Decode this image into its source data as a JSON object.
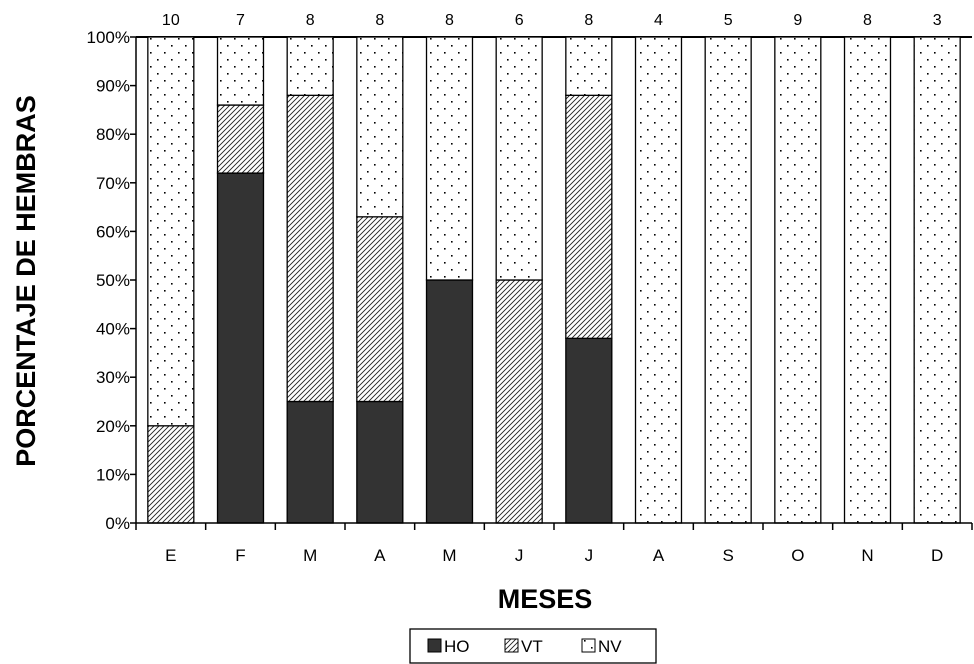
{
  "chart_data": {
    "type": "bar",
    "stacked": "percent",
    "title": "",
    "xlabel": "MESES",
    "ylabel": "PORCENTAJE DE HEMBRAS",
    "categories": [
      "E",
      "F",
      "M",
      "A",
      "M",
      "J",
      "J",
      "A",
      "S",
      "O",
      "N",
      "D"
    ],
    "sample_sizes": [
      "10",
      "7",
      "8",
      "8",
      "8",
      "6",
      "8",
      "4",
      "5",
      "9",
      "8",
      "3"
    ],
    "ylim": [
      0,
      100
    ],
    "yticks": [
      0,
      10,
      20,
      30,
      40,
      50,
      60,
      70,
      80,
      90,
      100
    ],
    "ytick_labels": [
      "0%",
      "10%",
      "20%",
      "30%",
      "40%",
      "50%",
      "60%",
      "70%",
      "80%",
      "90%",
      "100%"
    ],
    "grid": false,
    "legend_position": "bottom-center",
    "series": [
      {
        "name": "HO",
        "fill": "solid",
        "color": "#333333",
        "values": [
          0,
          72,
          25,
          25,
          50,
          0,
          38,
          0,
          0,
          0,
          0,
          0
        ]
      },
      {
        "name": "VT",
        "fill": "hatch",
        "color": "#000000",
        "values": [
          20,
          14,
          63,
          38,
          0,
          50,
          50,
          0,
          0,
          0,
          0,
          0
        ]
      },
      {
        "name": "NV",
        "fill": "dots",
        "color": "#000000",
        "values": [
          80,
          14,
          12,
          37,
          50,
          50,
          12,
          100,
          100,
          100,
          100,
          100
        ]
      }
    ]
  }
}
